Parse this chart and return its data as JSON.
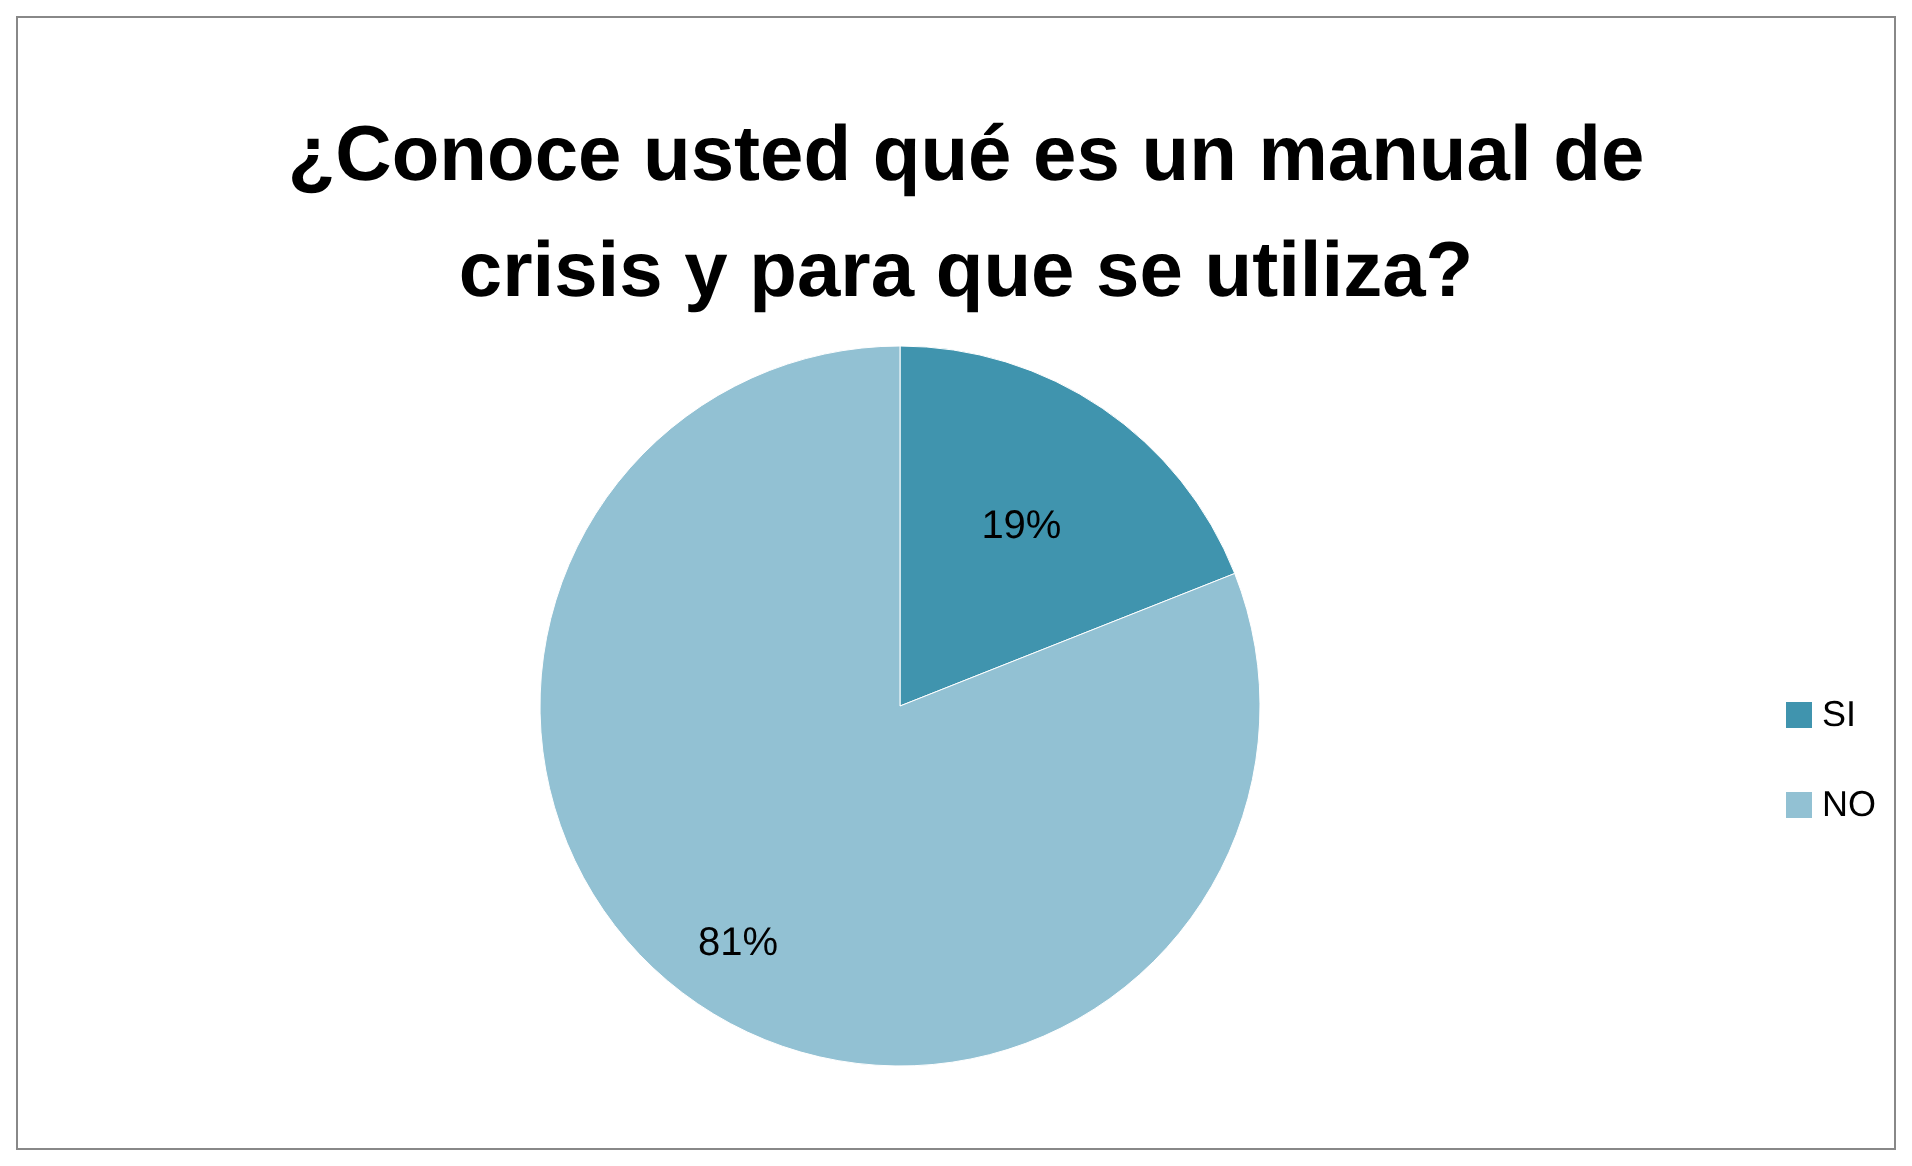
{
  "chart_data": {
    "type": "pie",
    "title": "¿Conoce usted qué es un manual de crisis y para que se utiliza?",
    "categories": [
      "SI",
      "NO"
    ],
    "values": [
      19,
      81
    ],
    "colors": [
      "#4094ae",
      "#92c1d3"
    ],
    "value_labels": [
      "19%",
      "81%"
    ],
    "legend": "right"
  }
}
